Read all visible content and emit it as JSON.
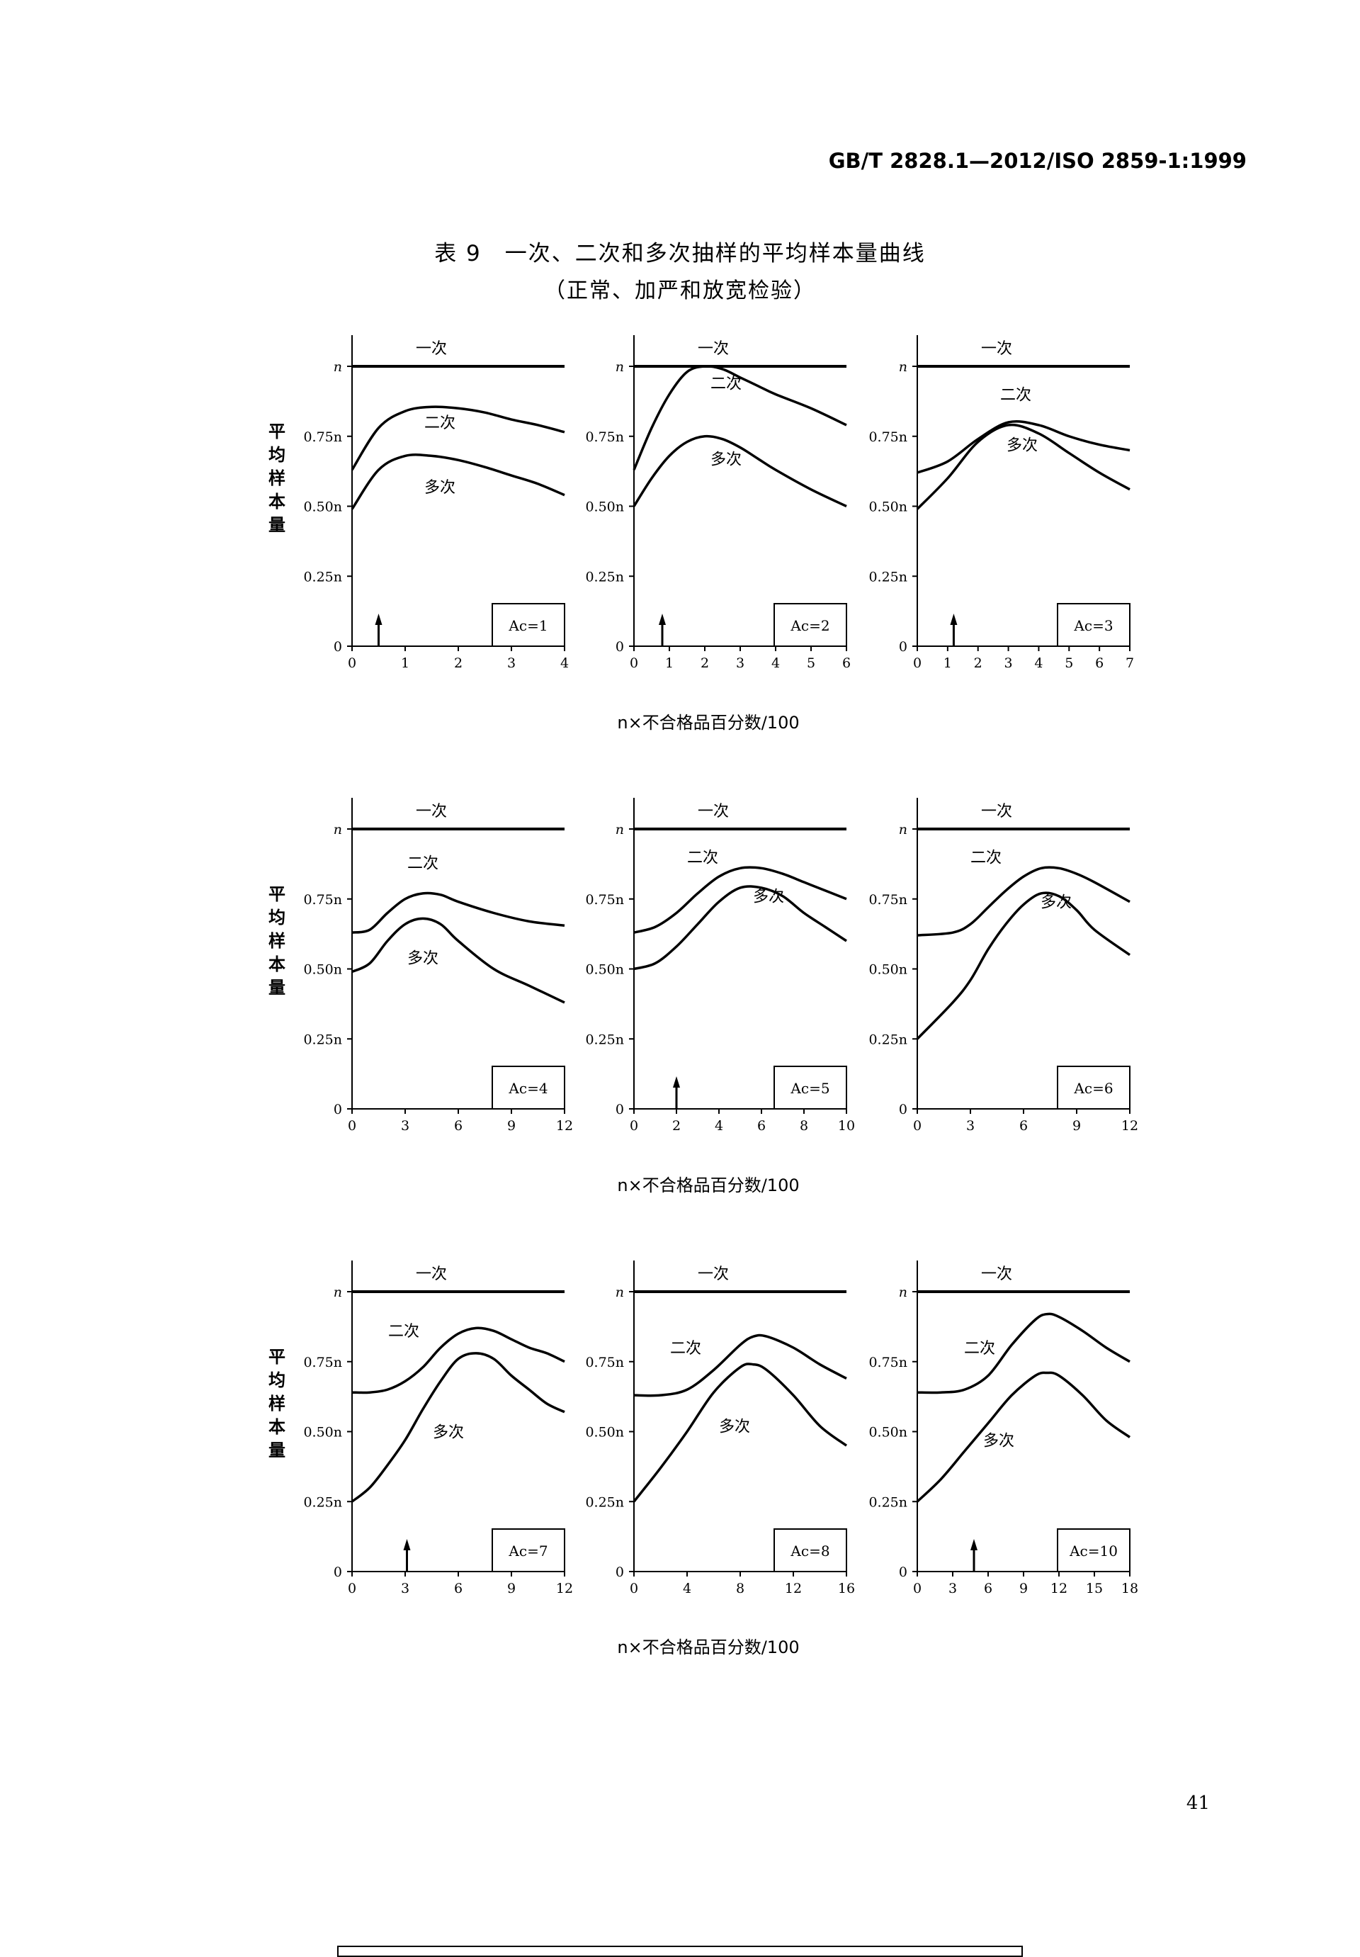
{
  "header": {
    "standard": "GB/T 2828.1—2012/ISO 2859-1:1999"
  },
  "title": "表 9　一次、二次和多次抽样的平均样本量曲线",
  "subtitle": "（正常、加严和放宽检验）",
  "page_number": "41",
  "y_axis_label": "平均样本量",
  "x_axis_label": "n×不合格品百分数/100",
  "y_ticks": [
    "0",
    "0.25n",
    "0.50n",
    "0.75n",
    "n"
  ],
  "chart_data": [
    {
      "type": "line",
      "acceptance": "Ac=1",
      "xlim": [
        0,
        4
      ],
      "xticks": [
        0,
        1,
        2,
        3,
        4
      ],
      "ylim": [
        0,
        1
      ],
      "arrow_x": 0.5,
      "series": [
        {
          "name": "一次",
          "x": [
            0,
            4
          ],
          "y": [
            1.0,
            1.0
          ]
        },
        {
          "name": "二次",
          "x": [
            0,
            0.5,
            1,
            1.5,
            2,
            2.5,
            3,
            3.5,
            4
          ],
          "y": [
            0.63,
            0.78,
            0.84,
            0.855,
            0.85,
            0.835,
            0.81,
            0.79,
            0.765
          ]
        },
        {
          "name": "多次",
          "x": [
            0,
            0.5,
            1,
            1.5,
            2,
            2.5,
            3,
            3.5,
            4
          ],
          "y": [
            0.49,
            0.63,
            0.68,
            0.68,
            0.665,
            0.64,
            0.61,
            0.58,
            0.54
          ]
        }
      ]
    },
    {
      "type": "line",
      "acceptance": "Ac=2",
      "xlim": [
        0,
        6
      ],
      "xticks": [
        0,
        1,
        2,
        3,
        4,
        5,
        6
      ],
      "ylim": [
        0,
        1
      ],
      "arrow_x": 0.8,
      "series": [
        {
          "name": "一次",
          "x": [
            0,
            6
          ],
          "y": [
            1.0,
            1.0
          ]
        },
        {
          "name": "二次",
          "x": [
            0,
            0.5,
            1,
            1.5,
            2,
            2.5,
            3,
            3.5,
            4,
            5,
            6
          ],
          "y": [
            0.63,
            0.78,
            0.9,
            0.98,
            1.0,
            0.99,
            0.96,
            0.93,
            0.9,
            0.85,
            0.79
          ]
        },
        {
          "name": "多次",
          "x": [
            0,
            0.5,
            1,
            1.5,
            2,
            2.5,
            3,
            3.5,
            4,
            5,
            6
          ],
          "y": [
            0.5,
            0.6,
            0.68,
            0.73,
            0.75,
            0.74,
            0.71,
            0.67,
            0.63,
            0.56,
            0.5
          ]
        }
      ]
    },
    {
      "type": "line",
      "acceptance": "Ac=3",
      "xlim": [
        0,
        7
      ],
      "xticks": [
        0,
        1,
        2,
        3,
        4,
        5,
        6,
        7
      ],
      "ylim": [
        0,
        1
      ],
      "arrow_x": 1.2,
      "series": [
        {
          "name": "一次",
          "x": [
            0,
            7
          ],
          "y": [
            1.0,
            1.0
          ]
        },
        {
          "name": "二次",
          "x": [
            0,
            1,
            2,
            3,
            4,
            5,
            6,
            7
          ],
          "y": [
            0.62,
            0.66,
            0.74,
            0.8,
            0.79,
            0.75,
            0.72,
            0.7
          ]
        },
        {
          "name": "多次",
          "x": [
            0,
            1,
            2,
            3,
            4,
            5,
            6,
            7
          ],
          "y": [
            0.49,
            0.6,
            0.73,
            0.79,
            0.76,
            0.69,
            0.62,
            0.56
          ]
        }
      ]
    },
    {
      "type": "line",
      "acceptance": "Ac=4",
      "xlim": [
        0,
        12
      ],
      "xticks": [
        0,
        3,
        6,
        9,
        12
      ],
      "ylim": [
        0,
        1
      ],
      "series": [
        {
          "name": "一次",
          "x": [
            0,
            12
          ],
          "y": [
            1.0,
            1.0
          ]
        },
        {
          "name": "二次",
          "x": [
            0,
            1,
            2,
            3,
            4,
            5,
            6,
            8,
            10,
            12
          ],
          "y": [
            0.63,
            0.64,
            0.7,
            0.75,
            0.77,
            0.765,
            0.74,
            0.7,
            0.67,
            0.655
          ]
        },
        {
          "name": "多次",
          "x": [
            0,
            1,
            2,
            3,
            4,
            5,
            6,
            8,
            10,
            12
          ],
          "y": [
            0.49,
            0.52,
            0.6,
            0.66,
            0.68,
            0.66,
            0.6,
            0.5,
            0.44,
            0.38
          ]
        }
      ]
    },
    {
      "type": "line",
      "acceptance": "Ac=5",
      "xlim": [
        0,
        10
      ],
      "xticks": [
        0,
        2,
        4,
        6,
        8,
        10
      ],
      "ylim": [
        0,
        1
      ],
      "arrow_x": 2,
      "series": [
        {
          "name": "一次",
          "x": [
            0,
            10
          ],
          "y": [
            1.0,
            1.0
          ]
        },
        {
          "name": "二次",
          "x": [
            0,
            1,
            2,
            3,
            4,
            5,
            6,
            7,
            8,
            9,
            10
          ],
          "y": [
            0.63,
            0.65,
            0.7,
            0.77,
            0.83,
            0.86,
            0.86,
            0.84,
            0.81,
            0.78,
            0.75
          ]
        },
        {
          "name": "多次",
          "x": [
            0,
            1,
            2,
            3,
            4,
            5,
            6,
            7,
            8,
            9,
            10
          ],
          "y": [
            0.5,
            0.52,
            0.58,
            0.66,
            0.74,
            0.79,
            0.79,
            0.76,
            0.7,
            0.65,
            0.6
          ]
        }
      ]
    },
    {
      "type": "line",
      "acceptance": "Ac=6",
      "xlim": [
        0,
        12
      ],
      "xticks": [
        0,
        3,
        6,
        9,
        12
      ],
      "ylim": [
        0,
        1
      ],
      "series": [
        {
          "name": "一次",
          "x": [
            0,
            12
          ],
          "y": [
            1.0,
            1.0
          ]
        },
        {
          "name": "二次",
          "x": [
            0,
            2,
            3,
            4,
            5,
            6,
            7,
            8,
            9,
            10,
            12
          ],
          "y": [
            0.62,
            0.63,
            0.66,
            0.72,
            0.78,
            0.83,
            0.86,
            0.86,
            0.84,
            0.81,
            0.74
          ]
        },
        {
          "name": "多次",
          "x": [
            0,
            2,
            3,
            4,
            5,
            6,
            7,
            8,
            9,
            10,
            12
          ],
          "y": [
            0.25,
            0.38,
            0.46,
            0.57,
            0.66,
            0.73,
            0.77,
            0.76,
            0.71,
            0.64,
            0.55
          ]
        }
      ]
    },
    {
      "type": "line",
      "acceptance": "Ac=7",
      "xlim": [
        0,
        12
      ],
      "xticks": [
        0,
        3,
        6,
        9,
        12
      ],
      "ylim": [
        0,
        1
      ],
      "arrow_x": 3.1,
      "series": [
        {
          "name": "一次",
          "x": [
            0,
            12
          ],
          "y": [
            1.0,
            1.0
          ]
        },
        {
          "name": "二次",
          "x": [
            0,
            1,
            2,
            3,
            4,
            5,
            6,
            7,
            8,
            9,
            10,
            11,
            12
          ],
          "y": [
            0.64,
            0.64,
            0.65,
            0.68,
            0.73,
            0.8,
            0.85,
            0.87,
            0.86,
            0.83,
            0.8,
            0.78,
            0.75
          ]
        },
        {
          "name": "多次",
          "x": [
            0,
            1,
            2,
            3,
            4,
            5,
            6,
            7,
            8,
            9,
            10,
            11,
            12
          ],
          "y": [
            0.25,
            0.3,
            0.38,
            0.47,
            0.58,
            0.68,
            0.76,
            0.78,
            0.76,
            0.7,
            0.65,
            0.6,
            0.57
          ]
        }
      ]
    },
    {
      "type": "line",
      "acceptance": "Ac=8",
      "xlim": [
        0,
        16
      ],
      "xticks": [
        0,
        4,
        8,
        12,
        16
      ],
      "ylim": [
        0,
        1
      ],
      "series": [
        {
          "name": "一次",
          "x": [
            0,
            16
          ],
          "y": [
            1.0,
            1.0
          ]
        },
        {
          "name": "二次",
          "x": [
            0,
            2,
            4,
            6,
            8,
            9,
            10,
            12,
            14,
            16
          ],
          "y": [
            0.63,
            0.63,
            0.65,
            0.72,
            0.81,
            0.84,
            0.84,
            0.8,
            0.74,
            0.69
          ]
        },
        {
          "name": "多次",
          "x": [
            0,
            2,
            4,
            6,
            8,
            9,
            10,
            12,
            14,
            16
          ],
          "y": [
            0.25,
            0.37,
            0.5,
            0.64,
            0.73,
            0.74,
            0.72,
            0.63,
            0.52,
            0.45
          ]
        }
      ]
    },
    {
      "type": "line",
      "acceptance": "Ac=10",
      "xlim": [
        0,
        18
      ],
      "xticks": [
        0,
        3,
        6,
        9,
        12,
        15,
        18
      ],
      "ylim": [
        0,
        1
      ],
      "arrow_x": 4.8,
      "series": [
        {
          "name": "一次",
          "x": [
            0,
            18
          ],
          "y": [
            1.0,
            1.0
          ]
        },
        {
          "name": "二次",
          "x": [
            0,
            2,
            4,
            6,
            8,
            10,
            11,
            12,
            14,
            16,
            18
          ],
          "y": [
            0.64,
            0.64,
            0.65,
            0.7,
            0.81,
            0.9,
            0.92,
            0.91,
            0.86,
            0.8,
            0.75
          ]
        },
        {
          "name": "多次",
          "x": [
            0,
            2,
            4,
            6,
            8,
            10,
            11,
            12,
            14,
            16,
            18
          ],
          "y": [
            0.25,
            0.33,
            0.43,
            0.53,
            0.63,
            0.7,
            0.71,
            0.7,
            0.63,
            0.54,
            0.48
          ]
        }
      ]
    }
  ]
}
